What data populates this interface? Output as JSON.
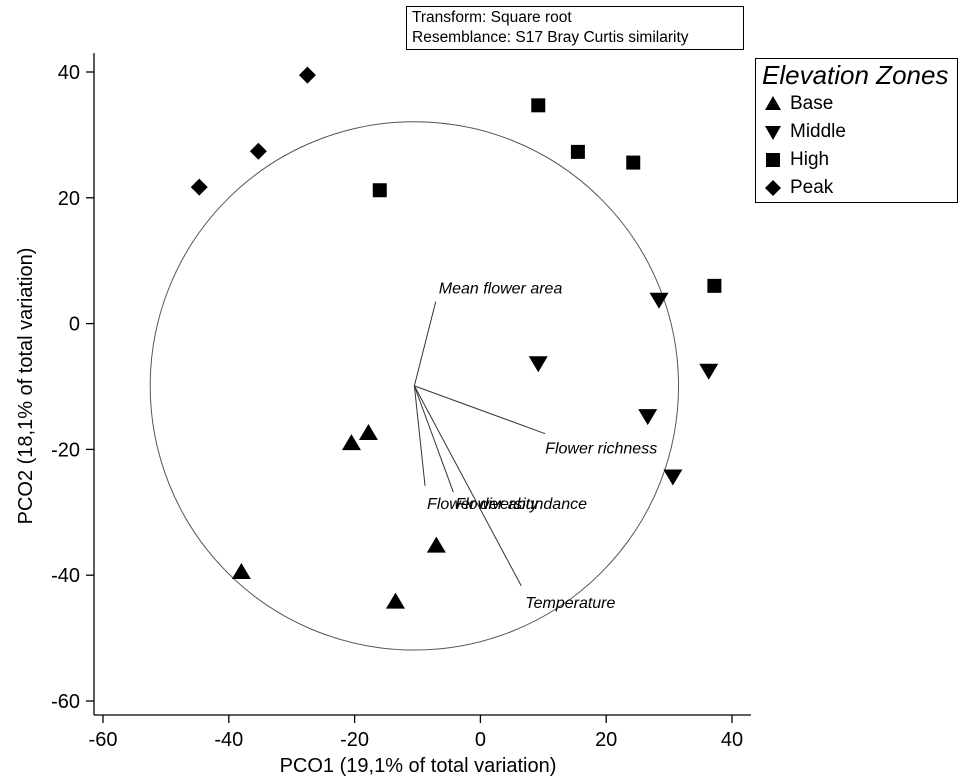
{
  "chart_data": {
    "type": "scatter",
    "xlabel": "PCO1 (19,1% of total variation)",
    "ylabel": "PCO2 (18,1% of total variation)",
    "xlim": [
      -63,
      43
    ],
    "ylim": [
      -62,
      43
    ],
    "xticks": [
      -60,
      -40,
      -20,
      0,
      20,
      40
    ],
    "yticks": [
      40,
      20,
      0,
      -20,
      -40,
      -60
    ],
    "grid": false,
    "legend_placement": "top-right",
    "annotation": [
      "Transform: Square root",
      "Resemblance: S17 Bray Curtis similarity"
    ],
    "legend_title": "Elevation Zones",
    "series": [
      {
        "name": "Base",
        "marker": "triangle-up",
        "points": [
          [
            -20.5,
            -19
          ],
          [
            -17.8,
            -17.4
          ],
          [
            -38,
            -39.5
          ],
          [
            -13.5,
            -44.2
          ],
          [
            -7,
            -35.3
          ]
        ]
      },
      {
        "name": "Middle",
        "marker": "triangle-down",
        "points": [
          [
            9.2,
            -6.3
          ],
          [
            28.4,
            3.8
          ],
          [
            36.3,
            -7.5
          ],
          [
            26.6,
            -14.7
          ],
          [
            30.6,
            -24.3
          ]
        ]
      },
      {
        "name": "High",
        "marker": "square",
        "points": [
          [
            9.2,
            34.7
          ],
          [
            15.5,
            27.3
          ],
          [
            24.3,
            25.6
          ],
          [
            -16,
            21.2
          ],
          [
            37.2,
            6
          ]
        ]
      },
      {
        "name": "Peak",
        "marker": "diamond",
        "points": [
          [
            -27.5,
            39.5
          ],
          [
            -35.3,
            27.4
          ],
          [
            -44.7,
            21.7
          ]
        ]
      }
    ],
    "correlation_circle": {
      "center": [
        -10.5,
        -9.9
      ],
      "radius": 42
    },
    "vectors": [
      {
        "label": "Mean flower area",
        "end": [
          -7.1,
          3.5
        ]
      },
      {
        "label": "Flower richness",
        "end": [
          10.3,
          -17.5
        ]
      },
      {
        "label": "Flower diversity",
        "end": [
          -8.8,
          -25.8
        ]
      },
      {
        "label": "Flower abundance",
        "end": [
          -4.3,
          -26.8
        ]
      },
      {
        "label": "Temperature",
        "end": [
          6.5,
          -41.7
        ]
      }
    ],
    "colors": {
      "markers": "#000000",
      "axes": "#000000",
      "circle": "#555555"
    }
  }
}
